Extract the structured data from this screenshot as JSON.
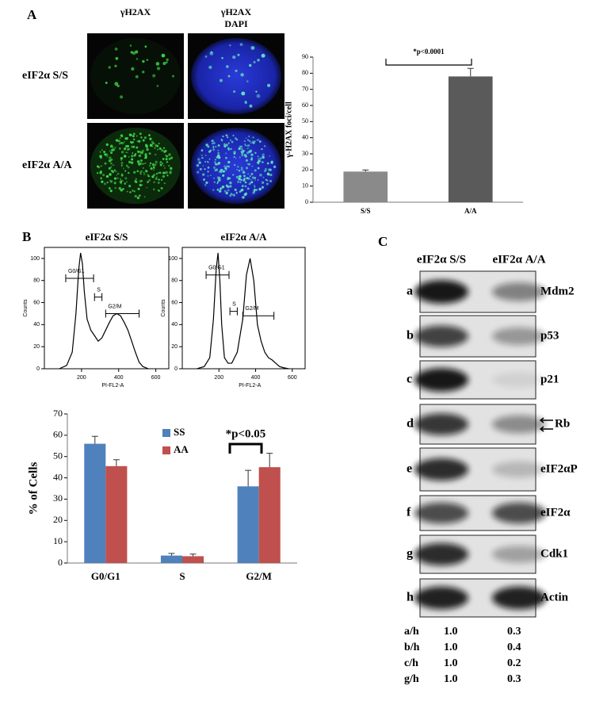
{
  "panel_labels": [
    "A",
    "B",
    "C"
  ],
  "microscopy": {
    "columns": [
      [
        "γH2AX"
      ],
      [
        "γH2AX",
        "DAPI"
      ]
    ],
    "rows": [
      "eIF2α S/S",
      "eIF2α A/A"
    ]
  },
  "chart_data": [
    {
      "type": "bar",
      "categories": [
        "S/S",
        "A/A"
      ],
      "values": [
        19,
        78
      ],
      "errors": [
        1,
        5
      ],
      "colors": [
        "#8a8a8a",
        "#5a5a5a"
      ],
      "ylabel": "γ-H2AX foci/cell",
      "ylim": [
        0,
        90
      ],
      "yticks": [
        0,
        10,
        20,
        30,
        40,
        50,
        60,
        70,
        80,
        90
      ],
      "annotation": "*p<0.0001"
    },
    {
      "type": "line",
      "title": "eIF2α S/S",
      "xlabel": "PI-FL2-A",
      "ylabel": "Counts",
      "x": [
        80,
        120,
        150,
        170,
        185,
        195,
        205,
        215,
        230,
        250,
        270,
        290,
        310,
        330,
        350,
        370,
        390,
        410,
        430,
        450,
        470,
        490,
        510,
        530,
        560
      ],
      "values": [
        0,
        3,
        15,
        50,
        90,
        105,
        95,
        70,
        45,
        35,
        30,
        25,
        28,
        35,
        42,
        48,
        50,
        48,
        42,
        35,
        25,
        15,
        6,
        2,
        0
      ],
      "xlim": [
        0,
        670
      ],
      "ylim": [
        0,
        110
      ],
      "xticks": [
        200,
        400,
        600
      ],
      "yticks": [
        0,
        20,
        40,
        60,
        80,
        100
      ],
      "gates": [
        {
          "label": "G0/G1",
          "range": [
            115,
            265
          ],
          "level": 82
        },
        {
          "label": "S",
          "range": [
            270,
            310
          ],
          "level": 65
        },
        {
          "label": "G2/M",
          "range": [
            330,
            510
          ],
          "level": 50
        }
      ]
    },
    {
      "type": "line",
      "title": "eIF2α A/A",
      "xlabel": "PI-FL2-A",
      "ylabel": "Counts",
      "x": [
        80,
        120,
        150,
        170,
        185,
        195,
        205,
        215,
        230,
        250,
        270,
        300,
        330,
        350,
        370,
        390,
        410,
        430,
        450,
        470,
        490,
        510,
        530,
        550,
        580
      ],
      "values": [
        0,
        2,
        10,
        45,
        90,
        105,
        80,
        40,
        10,
        5,
        5,
        15,
        45,
        85,
        100,
        80,
        40,
        25,
        15,
        10,
        8,
        5,
        2,
        1,
        0
      ],
      "xlim": [
        0,
        670
      ],
      "ylim": [
        0,
        110
      ],
      "xticks": [
        200,
        400,
        600
      ],
      "yticks": [
        0,
        20,
        40,
        60,
        80,
        100
      ],
      "gates": [
        {
          "label": "G0/G1",
          "range": [
            130,
            255
          ],
          "level": 85
        },
        {
          "label": "S",
          "range": [
            260,
            300
          ],
          "level": 52
        },
        {
          "label": "G2/M",
          "range": [
            330,
            500
          ],
          "level": 48
        }
      ]
    },
    {
      "type": "bar",
      "categories": [
        "G0/G1",
        "S",
        "G2/M"
      ],
      "series": [
        {
          "name": "SS",
          "color": "#4f81bd",
          "values": [
            56,
            3.5,
            36
          ],
          "errors": [
            3.5,
            1,
            7.5
          ]
        },
        {
          "name": "AA",
          "color": "#c0504d",
          "values": [
            45.5,
            3.2,
            45
          ],
          "errors": [
            3,
            1,
            6.5
          ]
        }
      ],
      "ylabel": "% of Cells",
      "ylim": [
        0,
        70
      ],
      "yticks": [
        0,
        10,
        20,
        30,
        40,
        50,
        60,
        70
      ],
      "annotation": "*p<0.05"
    }
  ],
  "western": {
    "columns": [
      "eIF2α S/S",
      "eIF2α A/A"
    ],
    "rows": [
      {
        "letter": "a",
        "label": "Mdm2"
      },
      {
        "letter": "b",
        "label": "p53"
      },
      {
        "letter": "c",
        "label": "p21"
      },
      {
        "letter": "d",
        "label": "Rb"
      },
      {
        "letter": "e",
        "label": "eIF2αP"
      },
      {
        "letter": "f",
        "label": "eIF2α"
      },
      {
        "letter": "g",
        "label": "Cdk1"
      },
      {
        "letter": "h",
        "label": "Actin"
      }
    ],
    "ratios": [
      [
        "a/h",
        "1.0",
        "0.3"
      ],
      [
        "b/h",
        "1.0",
        "0.4"
      ],
      [
        "c/h",
        "1.0",
        "0.2"
      ],
      [
        "g/h",
        "1.0",
        "0.3"
      ]
    ]
  }
}
